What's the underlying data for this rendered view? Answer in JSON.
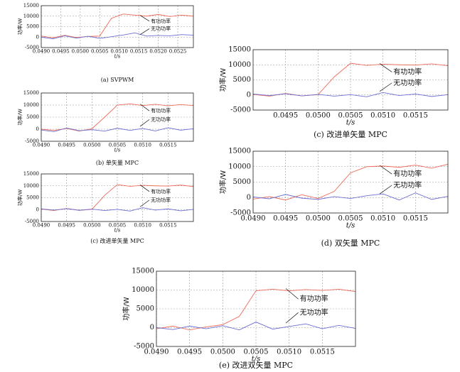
{
  "chart_data": [
    {
      "type": "line",
      "caption": "(a)  SVPWM",
      "xlabel": "t/s",
      "ylabel": "功率/W",
      "x": [
        0.049,
        0.0493,
        0.0496,
        0.0499,
        0.0502,
        0.0505,
        0.0508,
        0.0511,
        0.0514,
        0.0517,
        0.052,
        0.0523,
        0.0526,
        0.0529
      ],
      "series": [
        {
          "name": "有功功率",
          "color": "#ee6a5a",
          "values": [
            500,
            -300,
            800,
            -200,
            300,
            500,
            9000,
            11000,
            10500,
            10000,
            10800,
            9800,
            10500,
            10000
          ]
        },
        {
          "name": "无功功率",
          "color": "#6d6fd2",
          "values": [
            0,
            -800,
            600,
            -500,
            400,
            -600,
            200,
            1000,
            2000,
            500,
            800,
            600,
            1200,
            900
          ]
        }
      ],
      "xlim": [
        0.049,
        0.0529
      ],
      "ylim": [
        -5000,
        15000
      ],
      "xticks": [
        {
          "value": 0.049,
          "label": "0.0490"
        },
        {
          "value": 0.0495,
          "label": "0.0495"
        },
        {
          "value": 0.05,
          "label": "0.0500"
        },
        {
          "value": 0.0505,
          "label": "0.0505"
        },
        {
          "value": 0.051,
          "label": "0.0510"
        },
        {
          "value": 0.0515,
          "label": "0.0515"
        },
        {
          "value": 0.052,
          "label": "0.0520"
        },
        {
          "value": 0.0525,
          "label": "0.0525"
        }
      ],
      "yticks": [
        -5000,
        0,
        5000,
        10000,
        15000
      ],
      "grid": true
    },
    {
      "type": "line",
      "caption": "(b)  单矢量 MPC",
      "xlabel": "t/s",
      "ylabel": "功率/W",
      "x": [
        0.049,
        0.04925,
        0.0495,
        0.04975,
        0.05,
        0.05025,
        0.0505,
        0.05075,
        0.051,
        0.05125,
        0.0515,
        0.05175,
        0.052
      ],
      "series": [
        {
          "name": "有功功率",
          "color": "#ee6a5a",
          "values": [
            0,
            -500,
            300,
            -800,
            200,
            5000,
            10000,
            10500,
            9800,
            10300,
            9700,
            10200,
            9800
          ]
        },
        {
          "name": "无功功率",
          "color": "#6d6fd2",
          "values": [
            -300,
            -1000,
            500,
            -600,
            -200,
            -800,
            400,
            -500,
            300,
            -700,
            600,
            -400,
            200
          ]
        }
      ],
      "xlim": [
        0.049,
        0.052
      ],
      "ylim": [
        -5000,
        15000
      ],
      "xticks": [
        {
          "value": 0.049,
          "label": "0.0490"
        },
        {
          "value": 0.0495,
          "label": "0.0495"
        },
        {
          "value": 0.05,
          "label": "0.0500"
        },
        {
          "value": 0.0505,
          "label": "0.0505"
        },
        {
          "value": 0.051,
          "label": "0.0510"
        },
        {
          "value": 0.0515,
          "label": "0.0515"
        }
      ],
      "yticks": [
        -5000,
        0,
        5000,
        10000,
        15000
      ],
      "grid": true
    },
    {
      "type": "line",
      "caption": "(c)  改进单矢量 MPC",
      "xlabel": "t/s",
      "ylabel": "功率/W",
      "x": [
        0.049,
        0.04925,
        0.0495,
        0.04975,
        0.05,
        0.05025,
        0.0505,
        0.05075,
        0.051,
        0.05125,
        0.0515,
        0.05175,
        0.052
      ],
      "series": [
        {
          "name": "有功功率",
          "color": "#ee6a5a",
          "values": [
            200,
            -400,
            500,
            -300,
            100,
            6000,
            10500,
            9800,
            10200,
            10000,
            9900,
            10300,
            9700
          ]
        },
        {
          "name": "无功功率",
          "color": "#6d6fd2",
          "values": [
            300,
            -200,
            400,
            -300,
            200,
            -400,
            100,
            -600,
            800,
            -200,
            300,
            -500,
            100
          ]
        }
      ],
      "xlim": [
        0.049,
        0.052
      ],
      "ylim": [
        -5000,
        15000
      ],
      "xticks": [
        {
          "value": 0.049,
          "label": "0.0490"
        },
        {
          "value": 0.0495,
          "label": "0.0495"
        },
        {
          "value": 0.05,
          "label": "0.0500"
        },
        {
          "value": 0.0505,
          "label": "0.0505"
        },
        {
          "value": 0.051,
          "label": "0.0510"
        },
        {
          "value": 0.0515,
          "label": "0.0515"
        }
      ],
      "yticks": [
        -5000,
        0,
        5000,
        10000,
        15000
      ],
      "grid": true
    },
    {
      "type": "line",
      "caption": "(c)  改进单矢量 MPC",
      "xlabel": "t/s",
      "ylabel": "功率/W",
      "x": [
        0.049,
        0.04925,
        0.0495,
        0.04975,
        0.05,
        0.05025,
        0.0505,
        0.05075,
        0.051,
        0.05125,
        0.0515,
        0.05175,
        0.052
      ],
      "series": [
        {
          "name": "有功功率",
          "color": "#ee6a5a",
          "values": [
            200,
            -400,
            500,
            -300,
            100,
            6000,
            10500,
            9800,
            10200,
            10000,
            9900,
            10300,
            9700
          ]
        },
        {
          "name": "无功功率",
          "color": "#6d6fd2",
          "values": [
            300,
            -200,
            400,
            -300,
            200,
            -400,
            100,
            -600,
            800,
            -200,
            300,
            -500,
            100
          ]
        }
      ],
      "xlim": [
        0.049,
        0.052
      ],
      "ylim": [
        -5000,
        15000
      ],
      "xticks": [
        {
          "value": 0.0495,
          "label": "0.0495"
        },
        {
          "value": 0.05,
          "label": "0.0500"
        },
        {
          "value": 0.0505,
          "label": "0.0505"
        },
        {
          "value": 0.051,
          "label": "0.0510"
        },
        {
          "value": 0.0515,
          "label": "0.0515"
        }
      ],
      "yticks": [
        -5000,
        0,
        5000,
        10000,
        15000
      ],
      "grid": true
    },
    {
      "type": "line",
      "caption": "(d)  双矢量 MPC",
      "xlabel": "t/s",
      "ylabel": "功率/W",
      "x": [
        0.049,
        0.04925,
        0.0495,
        0.04975,
        0.05,
        0.05025,
        0.0505,
        0.05075,
        0.051,
        0.05125,
        0.0515,
        0.05175,
        0.052
      ],
      "series": [
        {
          "name": "有功功率",
          "color": "#ee6a5a",
          "values": [
            -500,
            300,
            -800,
            900,
            -300,
            2000,
            8000,
            10000,
            10200,
            9800,
            10500,
            9500,
            10800
          ]
        },
        {
          "name": "无功功率",
          "color": "#6d6fd2",
          "values": [
            200,
            -400,
            1000,
            -200,
            -600,
            300,
            -300,
            600,
            1200,
            -800,
            1500,
            -600,
            400
          ]
        }
      ],
      "xlim": [
        0.049,
        0.052
      ],
      "ylim": [
        -5000,
        15000
      ],
      "xticks": [
        {
          "value": 0.049,
          "label": "0.0490"
        },
        {
          "value": 0.0495,
          "label": "0.0495"
        },
        {
          "value": 0.05,
          "label": "0.0500"
        },
        {
          "value": 0.0505,
          "label": "0.0505"
        },
        {
          "value": 0.051,
          "label": "0.0510"
        },
        {
          "value": 0.0515,
          "label": "0.0515"
        }
      ],
      "yticks": [
        -5000,
        0,
        5000,
        10000,
        15000
      ],
      "grid": true
    },
    {
      "type": "line",
      "caption": "(e)  改进双矢量 MPC",
      "xlabel": "t/s",
      "ylabel": "功率/W",
      "x": [
        0.049,
        0.04925,
        0.0495,
        0.04975,
        0.05,
        0.05025,
        0.0505,
        0.05075,
        0.051,
        0.05125,
        0.0515,
        0.05175,
        0.052
      ],
      "series": [
        {
          "name": "有功功率",
          "color": "#ee6a5a",
          "values": [
            -300,
            400,
            -600,
            200,
            800,
            3000,
            9800,
            10200,
            9800,
            10100,
            9900,
            10200,
            9600
          ]
        },
        {
          "name": "无功功率",
          "color": "#6d6fd2",
          "values": [
            0,
            -500,
            400,
            -300,
            500,
            -600,
            1500,
            -400,
            300,
            1000,
            -300,
            600,
            -200
          ]
        }
      ],
      "xlim": [
        0.049,
        0.052
      ],
      "ylim": [
        -5000,
        15000
      ],
      "xticks": [
        {
          "value": 0.049,
          "label": "0.0490"
        },
        {
          "value": 0.0495,
          "label": "0.0495"
        },
        {
          "value": 0.05,
          "label": "0.0500"
        },
        {
          "value": 0.0505,
          "label": "0.0505"
        },
        {
          "value": 0.051,
          "label": "0.0510"
        },
        {
          "value": 0.0515,
          "label": "0.0515"
        }
      ],
      "yticks": [
        -5000,
        0,
        5000,
        10000,
        15000
      ],
      "grid": true
    }
  ]
}
